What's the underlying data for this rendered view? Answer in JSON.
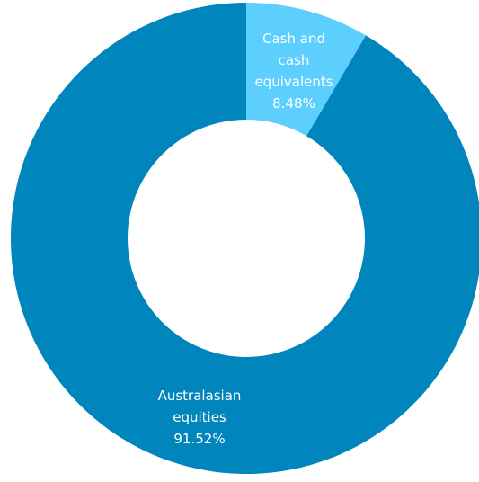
{
  "chart_data": {
    "type": "pie",
    "donut": true,
    "title": "",
    "slices": [
      {
        "label": "Cash and cash equivalents",
        "label_lines": [
          "Cash and",
          "cash",
          "equivalents"
        ],
        "value": 8.48,
        "value_label": "8.48%",
        "color": "#5ccfff"
      },
      {
        "label": "Australasian equities",
        "label_lines": [
          "Australasian",
          "equities"
        ],
        "value": 91.52,
        "value_label": "91.52%",
        "color": "#0085bd"
      }
    ],
    "start_angle_deg": 0,
    "direction": "clockwise",
    "legend": "none"
  }
}
